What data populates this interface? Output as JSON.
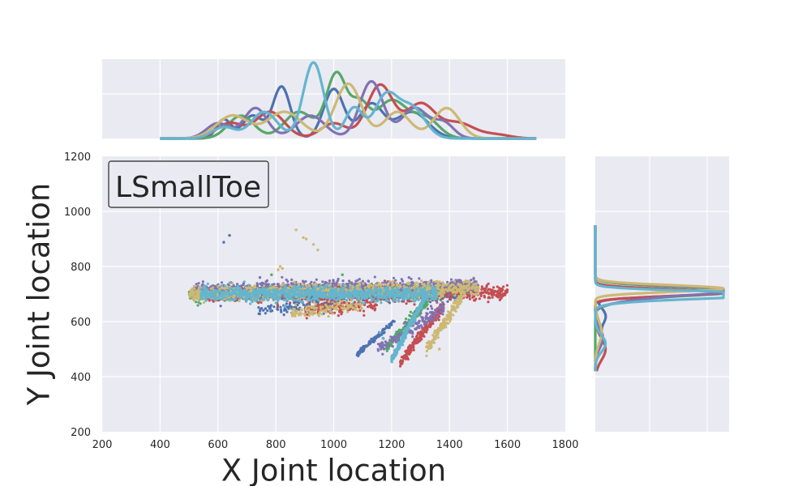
{
  "chart_data": {
    "type": "scatter",
    "xlabel": "X Joint location",
    "ylabel": "Y Joint location",
    "xlim": [
      200,
      1800
    ],
    "ylim": [
      200,
      1200
    ],
    "x_ticks": [
      "200",
      "400",
      "600",
      "800",
      "1000",
      "1200",
      "1400",
      "1600",
      "1800"
    ],
    "y_ticks": [
      "200",
      "400",
      "600",
      "800",
      "1000",
      "1200"
    ],
    "annotation": "LSmallToe",
    "grid": true,
    "background": "#eaeaf2",
    "marginal_x": "kde",
    "marginal_y": "kde",
    "series": [
      {
        "color": "#4c72b0",
        "x_peaks": [
          [
            620,
            0.25,
            25
          ],
          [
            720,
            0.3,
            35
          ],
          [
            820,
            0.68,
            30
          ],
          [
            1000,
            0.65,
            35
          ],
          [
            1130,
            0.45,
            40
          ],
          [
            1270,
            0.35,
            55
          ]
        ],
        "y_peaks": [
          [
            705,
            1.0,
            12
          ],
          [
            620,
            0.08,
            30
          ],
          [
            540,
            0.05,
            30
          ]
        ],
        "clusters": [
          [
            600,
            1440,
            700,
            705,
            25,
            900
          ],
          [
            740,
            1000,
            640,
            665,
            25,
            120
          ],
          [
            1080,
            1210,
            480,
            600,
            10,
            100
          ]
        ],
        "points": [
          [
            620,
            888
          ],
          [
            640,
            913
          ]
        ]
      },
      {
        "color": "#55a868",
        "x_peaks": [
          [
            680,
            0.3,
            45
          ],
          [
            880,
            0.35,
            50
          ],
          [
            1010,
            0.85,
            35
          ],
          [
            1090,
            0.4,
            30
          ],
          [
            1200,
            0.5,
            55
          ],
          [
            1320,
            0.25,
            45
          ]
        ],
        "y_peaks": [
          [
            712,
            1.0,
            14
          ],
          [
            690,
            0.3,
            20
          ]
        ],
        "clusters": [
          [
            500,
            1420,
            700,
            712,
            25,
            850
          ],
          [
            1180,
            1330,
            500,
            680,
            20,
            180
          ]
        ],
        "points": [
          [
            785,
            770
          ],
          [
            1030,
            770
          ]
        ]
      },
      {
        "color": "#c44e52",
        "x_peaks": [
          [
            640,
            0.2,
            45
          ],
          [
            780,
            0.35,
            50
          ],
          [
            1000,
            0.2,
            45
          ],
          [
            1160,
            0.7,
            45
          ],
          [
            1300,
            0.45,
            50
          ],
          [
            1430,
            0.2,
            55
          ],
          [
            1560,
            0.05,
            50
          ]
        ],
        "y_peaks": [
          [
            705,
            1.0,
            12
          ],
          [
            500,
            0.08,
            40
          ]
        ],
        "clusters": [
          [
            560,
            1600,
            700,
            705,
            25,
            1000
          ],
          [
            1230,
            1380,
            450,
            660,
            20,
            220
          ],
          [
            900,
            1150,
            640,
            665,
            25,
            150
          ]
        ],
        "points": [
          [
            1590,
            702
          ],
          [
            1600,
            715
          ]
        ]
      },
      {
        "color": "#8172b2",
        "x_peaks": [
          [
            600,
            0.2,
            40
          ],
          [
            730,
            0.4,
            40
          ],
          [
            920,
            0.3,
            50
          ],
          [
            1130,
            0.75,
            40
          ],
          [
            1280,
            0.4,
            45
          ],
          [
            1380,
            0.2,
            35
          ]
        ],
        "y_peaks": [
          [
            715,
            1.0,
            14
          ],
          [
            690,
            0.35,
            18
          ],
          [
            540,
            0.06,
            35
          ]
        ],
        "clusters": [
          [
            520,
            1500,
            715,
            730,
            25,
            900
          ],
          [
            1150,
            1380,
            500,
            650,
            25,
            150
          ]
        ],
        "points": [
          [
            745,
            760
          ],
          [
            1260,
            760
          ]
        ]
      },
      {
        "color": "#ccb974",
        "x_peaks": [
          [
            650,
            0.3,
            55
          ],
          [
            830,
            0.35,
            60
          ],
          [
            1050,
            0.72,
            45
          ],
          [
            1220,
            0.35,
            45
          ],
          [
            1390,
            0.4,
            45
          ]
        ],
        "y_peaks": [
          [
            720,
            1.0,
            12
          ],
          [
            560,
            0.05,
            40
          ]
        ],
        "clusters": [
          [
            500,
            1500,
            700,
            722,
            25,
            950
          ],
          [
            1320,
            1450,
            500,
            700,
            20,
            200
          ],
          [
            850,
            1100,
            635,
            660,
            25,
            120
          ]
        ],
        "points": [
          [
            870,
            933
          ],
          [
            895,
            905
          ],
          [
            905,
            900
          ],
          [
            930,
            880
          ],
          [
            945,
            860
          ],
          [
            815,
            800
          ],
          [
            823,
            793
          ],
          [
            808,
            788
          ],
          [
            1360,
            700
          ],
          [
            1365,
            500
          ]
        ]
      },
      {
        "color": "#64b5cd",
        "x_peaks": [
          [
            620,
            0.15,
            40
          ],
          [
            760,
            0.35,
            45
          ],
          [
            930,
            1.0,
            35
          ],
          [
            1070,
            0.4,
            30
          ],
          [
            1180,
            0.55,
            40
          ],
          [
            1270,
            0.4,
            45
          ]
        ],
        "y_peaks": [
          [
            700,
            1.0,
            11
          ],
          [
            690,
            0.6,
            15
          ],
          [
            520,
            0.08,
            30
          ]
        ],
        "clusters": [
          [
            540,
            1360,
            700,
            700,
            25,
            1000
          ],
          [
            1200,
            1320,
            460,
            700,
            15,
            300
          ]
        ],
        "points": [
          [
            1160,
            560
          ],
          [
            1170,
            540
          ]
        ]
      }
    ]
  }
}
